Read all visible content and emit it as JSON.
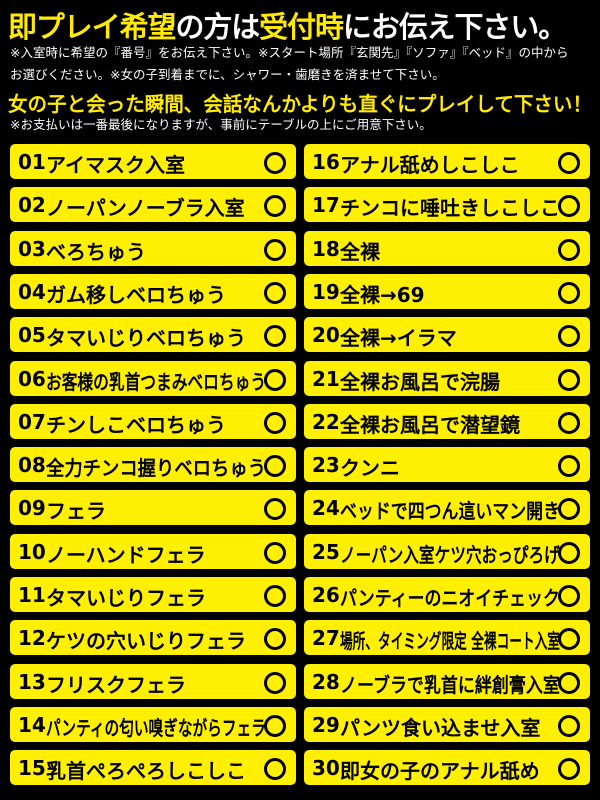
{
  "header": {
    "title": [
      {
        "text": "即プレイ希望",
        "highlight": true
      },
      {
        "text": "の方は",
        "highlight": false
      },
      {
        "text": "受付時",
        "highlight": true
      },
      {
        "text": "にお伝え下さい。",
        "highlight": false
      }
    ],
    "notes": [
      "※入室時に希望の『番号』をお伝え下さい。※スタート場所『玄関先』『ソファ』『ベッド』の中から",
      "お選びください。※女の子到着までに、シャワー・歯磨きを済ませて下さい。"
    ],
    "emphasis": "女の子と会った瞬間、会話なんかよりも直ぐにプレイして下さい！",
    "payment_note": "※お支払いは一番最後になりますが、事前にテーブルの上にご用意下さい。"
  },
  "items": [
    {
      "number": "01",
      "label": "アイマスク入室"
    },
    {
      "number": "02",
      "label": "ノーパンノーブラ入室"
    },
    {
      "number": "03",
      "label": "べろちゅう"
    },
    {
      "number": "04",
      "label": "ガム移しベロちゅう"
    },
    {
      "number": "05",
      "label": "タマいじりベロちゅう"
    },
    {
      "number": "06",
      "label": "お客様の乳首つまみベロちゅう"
    },
    {
      "number": "07",
      "label": "チンしこベロちゅう"
    },
    {
      "number": "08",
      "label": "全力チンコ握りベロちゅう"
    },
    {
      "number": "09",
      "label": "フェラ"
    },
    {
      "number": "10",
      "label": "ノーハンドフェラ"
    },
    {
      "number": "11",
      "label": "タマいじりフェラ"
    },
    {
      "number": "12",
      "label": "ケツの穴いじりフェラ"
    },
    {
      "number": "13",
      "label": "フリスクフェラ"
    },
    {
      "number": "14",
      "label": "パンティの匂い嗅ぎながらフェラ"
    },
    {
      "number": "15",
      "label": "乳首ぺろぺろしこしこ"
    },
    {
      "number": "16",
      "label": "アナル舐めしこしこ"
    },
    {
      "number": "17",
      "label": "チンコに唾吐きしこしこ"
    },
    {
      "number": "18",
      "label": "全裸"
    },
    {
      "number": "19",
      "label": "全裸→69"
    },
    {
      "number": "20",
      "label": "全裸→イラマ"
    },
    {
      "number": "21",
      "label": "全裸お風呂で浣腸"
    },
    {
      "number": "22",
      "label": "全裸お風呂で潜望鏡"
    },
    {
      "number": "23",
      "label": "クンニ"
    },
    {
      "number": "24",
      "label": "ベッドで四つん這いマン開き"
    },
    {
      "number": "25",
      "label": "ノーパン入室ケツ穴おっぴろげ"
    },
    {
      "number": "26",
      "label": "パンティーのニオイチェック"
    },
    {
      "number": "27",
      "label": "場所、タイミング限定 全裸コート入室"
    },
    {
      "number": "28",
      "label": "ノーブラで乳首に絆創膏入室"
    },
    {
      "number": "29",
      "label": "パンツ食い込ませ入室"
    },
    {
      "number": "30",
      "label": "即女の子のアナル舐め"
    }
  ]
}
